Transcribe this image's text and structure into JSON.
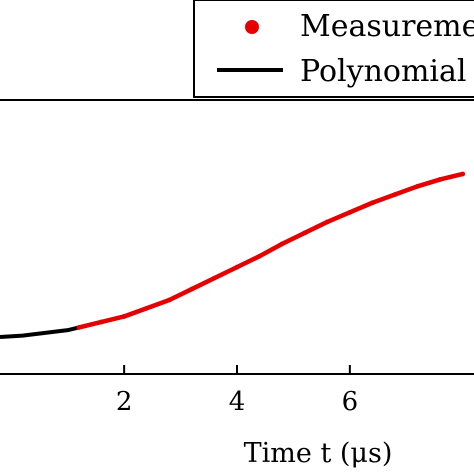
{
  "chart_data": {
    "type": "line",
    "xlabel": "Time t (μs)",
    "x_ticks": [
      2,
      4,
      6
    ],
    "xlim": [
      -0.2,
      8.2
    ],
    "ylim": [
      0,
      1
    ],
    "grid": false,
    "legend_placement": "top-right",
    "series": [
      {
        "name": "Measureme",
        "kind": "scatter",
        "color": "#e60000",
        "x": [
          1.2,
          1.6,
          2.0,
          2.4,
          2.8,
          3.2,
          3.6,
          4.0,
          4.4,
          4.8,
          5.2,
          5.6,
          6.0,
          6.4,
          6.8,
          7.2,
          7.6,
          8.0
        ],
        "y": [
          0.17,
          0.19,
          0.21,
          0.24,
          0.27,
          0.31,
          0.35,
          0.39,
          0.43,
          0.475,
          0.515,
          0.555,
          0.59,
          0.625,
          0.655,
          0.685,
          0.71,
          0.73
        ]
      },
      {
        "name": "Polynomial",
        "kind": "line",
        "color": "#000000",
        "x": [
          -0.2,
          0.2,
          0.6,
          1.0,
          1.2,
          1.6,
          2.0,
          2.4,
          2.8,
          3.2,
          3.6,
          4.0,
          4.4,
          4.8,
          5.2,
          5.6,
          6.0,
          6.4,
          6.8,
          7.2,
          7.6,
          8.0
        ],
        "y": [
          0.135,
          0.14,
          0.15,
          0.16,
          0.17,
          0.19,
          0.21,
          0.24,
          0.27,
          0.31,
          0.35,
          0.39,
          0.43,
          0.475,
          0.515,
          0.555,
          0.59,
          0.625,
          0.655,
          0.685,
          0.71,
          0.73
        ]
      }
    ]
  }
}
